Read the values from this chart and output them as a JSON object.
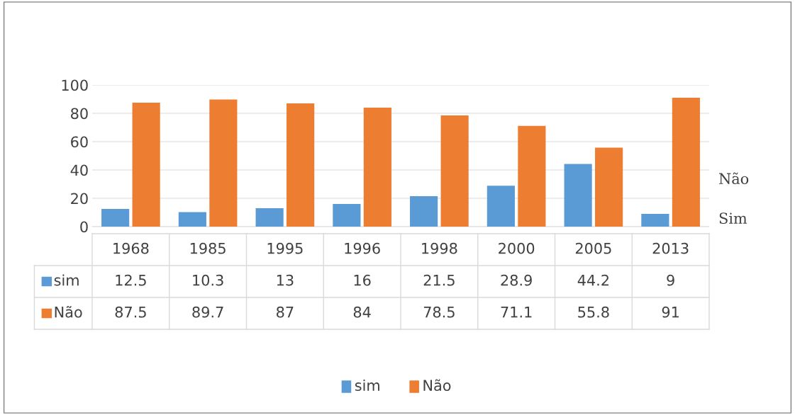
{
  "chart_data": {
    "type": "bar",
    "categories": [
      "1968",
      "1985",
      "1995",
      "1996",
      "1998",
      "2000",
      "2005",
      "2013"
    ],
    "series": [
      {
        "name": "sim",
        "color": "#5b9bd5",
        "values": [
          12.5,
          10.3,
          13,
          16,
          21.5,
          28.9,
          44.2,
          9
        ]
      },
      {
        "name": "Não",
        "color": "#ed7d31",
        "values": [
          87.5,
          89.7,
          87,
          84,
          78.5,
          71.1,
          55.8,
          91
        ]
      }
    ],
    "ylim": [
      0,
      100
    ],
    "yticks": [
      0,
      20,
      40,
      60,
      80,
      100
    ],
    "grid": "y",
    "data_labels": true,
    "legend": "bottom",
    "annotations": [
      "Não",
      "Sim"
    ]
  }
}
